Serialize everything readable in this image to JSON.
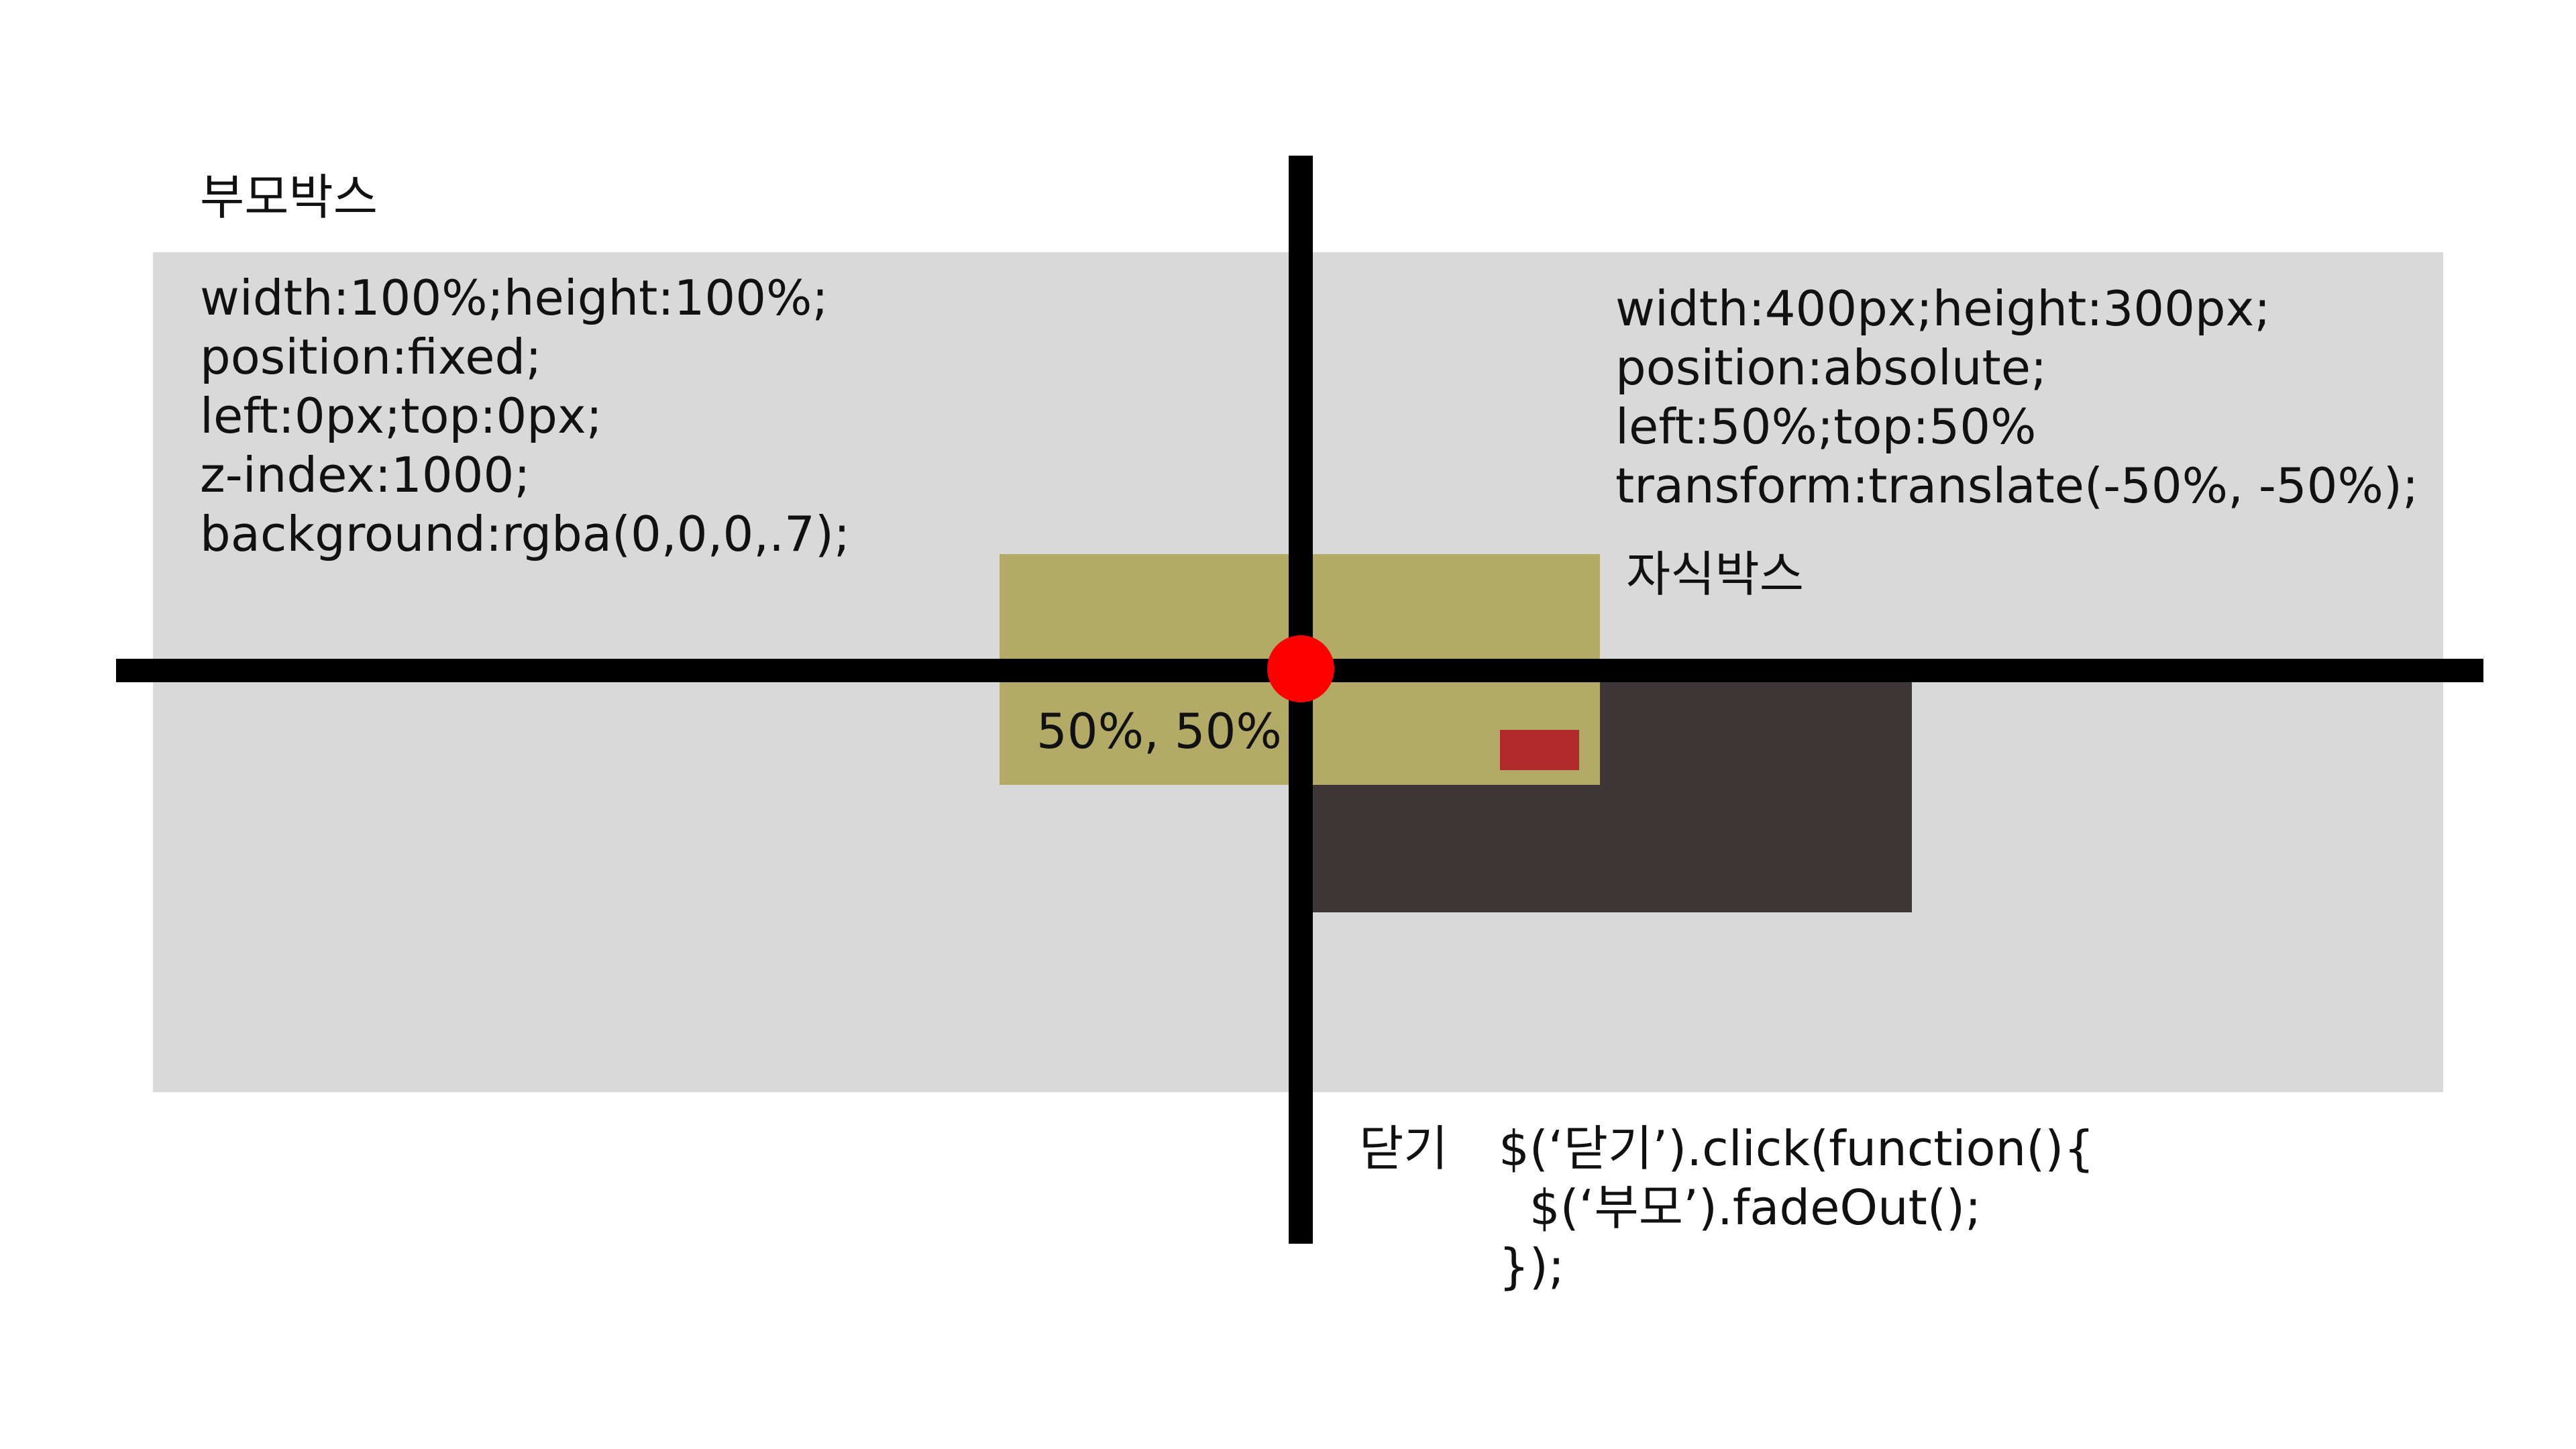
{
  "colors": {
    "parent_box": "#d9d9d9",
    "child_box": "#3e3536",
    "translate_box": "#b2aa66",
    "close_marker": "#b0292b",
    "axis": "#000000",
    "center_dot": "#ff0000",
    "text": "#111111"
  },
  "parent": {
    "title": "부모박스",
    "css_lines": [
      "width:100%;height:100%;",
      "position:fixed;",
      "left:0px;top:0px;",
      "z-index:1000;",
      "background:rgba(0,0,0,.7);"
    ]
  },
  "child": {
    "title": "자식박스",
    "css_lines": [
      "width:400px;height:300px;",
      "position:absolute;",
      "left:50%;top:50%",
      "transform:translate(-50%, -50%);"
    ]
  },
  "center": {
    "label": "50%, 50%"
  },
  "close": {
    "label": "닫기",
    "code_lines": [
      "$(‘닫기’).click(function(){",
      "  $(‘부모’).fadeOut();",
      "});"
    ]
  }
}
